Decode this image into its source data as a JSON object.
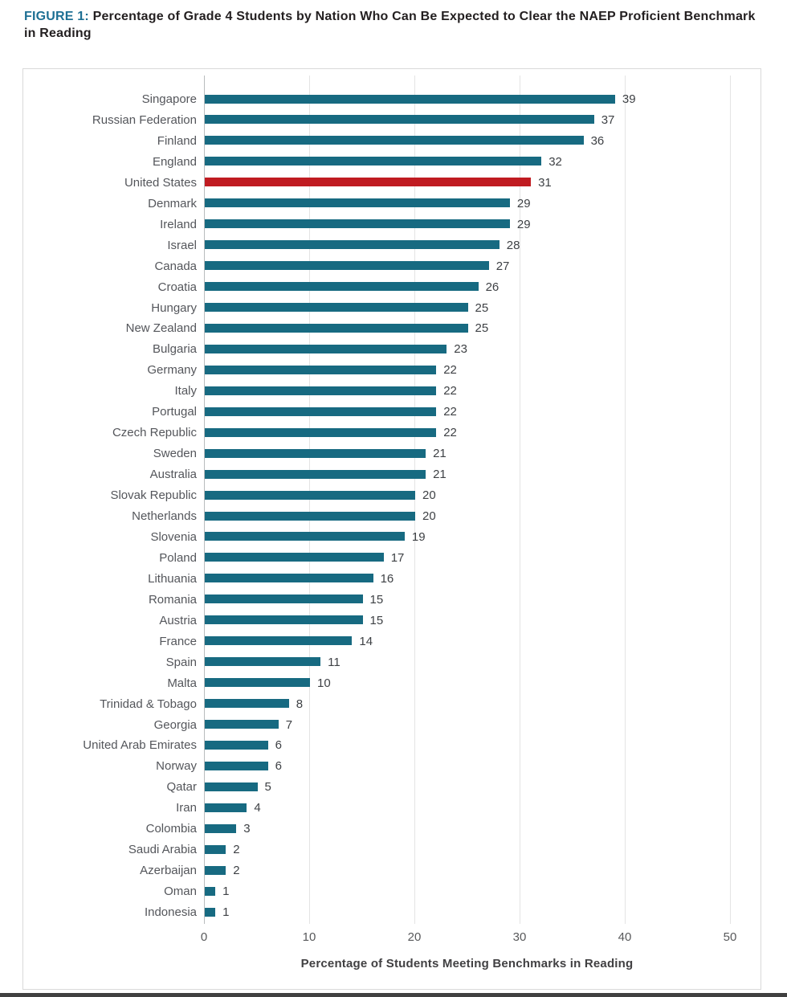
{
  "title": {
    "prefix": "FIGURE 1:",
    "text": " Percentage of Grade 4 Students by Nation Who Can Be Expected to Clear the NAEP Proficient Benchmark in Reading"
  },
  "colors": {
    "bar": "#176A81",
    "highlight": "#C01B21",
    "title_prefix": "#1E7094",
    "grid": "#E4E4E4",
    "axis": "#B9BCBE",
    "label": "#54565B",
    "value": "#3E4145",
    "tick": "#58595B"
  },
  "chart_data": {
    "type": "bar",
    "orientation": "horizontal",
    "title": "FIGURE 1: Percentage of Grade 4 Students by Nation Who Can Be Expected to Clear the NAEP Proficient Benchmark in Reading",
    "xlabel": "Percentage of Students Meeting Benchmarks in Reading",
    "ylabel": "",
    "xlim": [
      0,
      50
    ],
    "xticks": [
      0,
      10,
      20,
      30,
      40,
      50
    ],
    "grid": true,
    "legend": false,
    "value_labels": true,
    "highlight_category": "United States",
    "categories": [
      "Singapore",
      "Russian Federation",
      "Finland",
      "England",
      "United States",
      "Denmark",
      "Ireland",
      "Israel",
      "Canada",
      "Croatia",
      "Hungary",
      "New Zealand",
      "Bulgaria",
      "Germany",
      "Italy",
      "Portugal",
      "Czech Republic",
      "Sweden",
      "Australia",
      "Slovak Republic",
      "Netherlands",
      "Slovenia",
      "Poland",
      "Lithuania",
      "Romania",
      "Austria",
      "France",
      "Spain",
      "Malta",
      "Trinidad & Tobago",
      "Georgia",
      "United Arab Emirates",
      "Norway",
      "Qatar",
      "Iran",
      "Colombia",
      "Saudi Arabia",
      "Azerbaijan",
      "Oman",
      "Indonesia"
    ],
    "values": [
      39,
      37,
      36,
      32,
      31,
      29,
      29,
      28,
      27,
      26,
      25,
      25,
      23,
      22,
      22,
      22,
      22,
      21,
      21,
      20,
      20,
      19,
      17,
      16,
      15,
      15,
      14,
      11,
      10,
      8,
      7,
      6,
      6,
      5,
      4,
      3,
      2,
      2,
      1,
      1
    ]
  }
}
